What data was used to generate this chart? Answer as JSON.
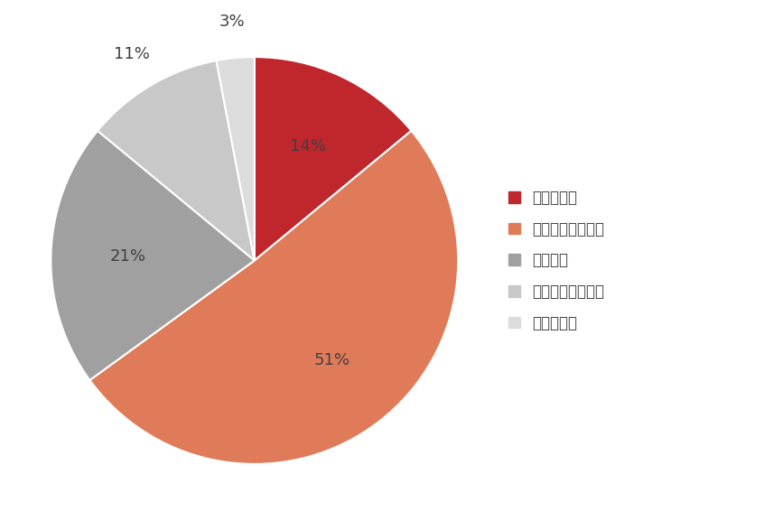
{
  "labels": [
    "増加させる",
    "僅かに増加させる",
    "増減なし",
    "僅かに減少させる",
    "減少させる"
  ],
  "values": [
    14,
    51,
    21,
    11,
    3
  ],
  "colors": [
    "#c0272d",
    "#e07b5a",
    "#a0a0a0",
    "#c8c8c8",
    "#dcdcdc"
  ],
  "pct_labels": [
    "14%",
    "51%",
    "21%",
    "11%",
    "3%"
  ],
  "background_color": "#ffffff",
  "text_color": "#404040",
  "legend_fontsize": 12,
  "pct_fontsize": 13
}
